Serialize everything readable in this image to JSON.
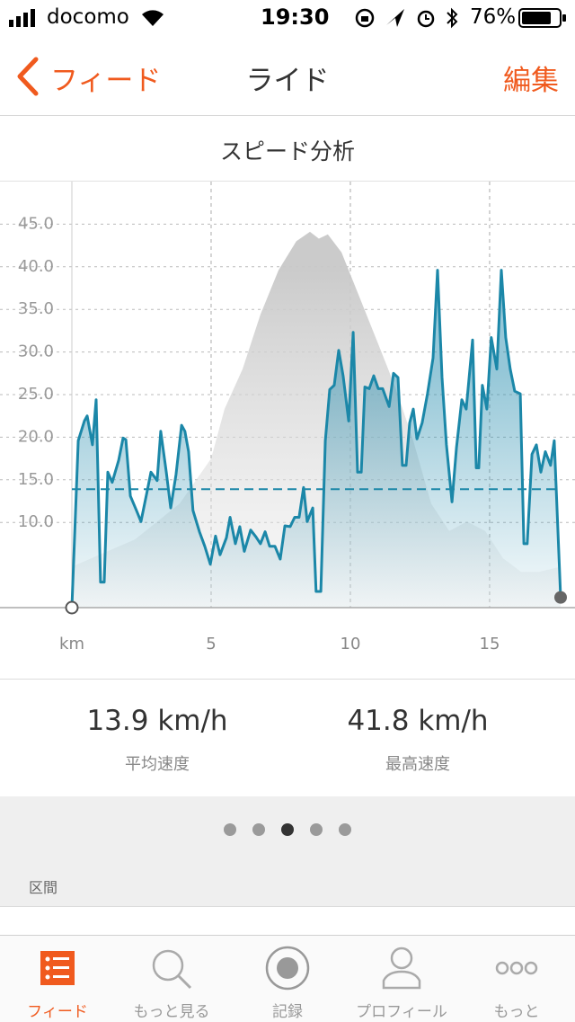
{
  "status_bar": {
    "carrier": "docomo",
    "time": "19:30",
    "battery": "76%"
  },
  "nav": {
    "back": "フィード",
    "title": "ライド",
    "action": "編集"
  },
  "section_title": "スピード分析",
  "chart_data": {
    "type": "area",
    "xlabel": "km",
    "xlim": [
      0,
      17.55
    ],
    "xticks": [
      5,
      10,
      15
    ],
    "ylim": [
      0,
      50
    ],
    "yticks": [
      {
        "value": 10,
        "label": "10.0"
      },
      {
        "value": 15,
        "label": "15.0"
      },
      {
        "value": 20,
        "label": "20.0"
      },
      {
        "value": 25,
        "label": "25.0"
      },
      {
        "value": 30,
        "label": "30.0"
      },
      {
        "value": 35,
        "label": "35.0"
      },
      {
        "value": 40,
        "label": "40.0"
      },
      {
        "value": 45,
        "label": "45.0"
      }
    ],
    "grid": true,
    "average": 13.9,
    "series": [
      {
        "color": "#c4c4c4",
        "x": [
          0,
          2.26,
          3.87,
          5,
          5.48,
          6.13,
          6.77,
          7.42,
          8.06,
          8.55,
          8.87,
          9.19,
          9.68,
          10.32,
          10.97,
          11.61,
          12.26,
          12.9,
          13.55,
          14.19,
          14.84,
          15.48,
          16.13,
          16.77,
          17.55
        ],
        "values": [
          4.8,
          8.0,
          12.2,
          17.5,
          23.3,
          28.0,
          34.4,
          39.6,
          43.0,
          44.1,
          43.3,
          43.8,
          41.7,
          36.5,
          31.2,
          25.9,
          19.6,
          12.2,
          9.0,
          10.1,
          9.0,
          5.8,
          4.2,
          4.2,
          4.8
        ]
      },
      {
        "color": "#1b87a8",
        "x": [
          0,
          0.23,
          0.45,
          0.55,
          0.74,
          0.87,
          1.03,
          1.16,
          1.29,
          1.45,
          1.68,
          1.84,
          1.94,
          2.1,
          2.32,
          2.48,
          2.68,
          2.84,
          3.06,
          3.19,
          3.39,
          3.55,
          3.74,
          3.94,
          4.06,
          4.19,
          4.35,
          4.58,
          4.77,
          4.97,
          5.16,
          5.32,
          5.55,
          5.68,
          5.87,
          6.03,
          6.19,
          6.42,
          6.61,
          6.77,
          6.94,
          7.1,
          7.29,
          7.48,
          7.65,
          7.84,
          8.0,
          8.16,
          8.32,
          8.45,
          8.65,
          8.77,
          8.94,
          9.1,
          9.26,
          9.42,
          9.58,
          9.74,
          9.94,
          10.1,
          10.26,
          10.39,
          10.52,
          10.68,
          10.84,
          11.0,
          11.16,
          11.39,
          11.55,
          11.71,
          11.87,
          12.0,
          12.13,
          12.26,
          12.39,
          12.58,
          12.77,
          12.97,
          13.13,
          13.29,
          13.45,
          13.65,
          13.81,
          14.0,
          14.16,
          14.39,
          14.52,
          14.61,
          14.74,
          14.9,
          15.06,
          15.26,
          15.42,
          15.58,
          15.74,
          15.9,
          16.1,
          16.23,
          16.35,
          16.52,
          16.68,
          16.84,
          17.0,
          17.19,
          17.32,
          17.55
        ],
        "values": [
          0,
          19.6,
          21.9,
          22.5,
          19.1,
          24.4,
          3,
          3,
          15.9,
          14.7,
          17.3,
          19.9,
          19.7,
          13.1,
          11.4,
          10.1,
          13.3,
          15.9,
          14.9,
          20.7,
          15.9,
          11.7,
          15.6,
          21.4,
          20.7,
          18.3,
          11.4,
          8.9,
          7.2,
          5.1,
          8.4,
          6.2,
          8.2,
          10.6,
          7.5,
          9.5,
          6.6,
          9.1,
          8.3,
          7.5,
          8.9,
          7.2,
          7.2,
          5.7,
          9.6,
          9.5,
          10.6,
          10.6,
          14.1,
          10.1,
          11.7,
          1.9,
          1.9,
          19.6,
          25.6,
          26.1,
          30.2,
          27.2,
          21.9,
          32.3,
          15.9,
          15.9,
          25.9,
          25.7,
          27.2,
          25.7,
          25.7,
          23.6,
          27.5,
          27.0,
          16.7,
          16.7,
          21.7,
          23.3,
          19.8,
          21.7,
          25.1,
          29.3,
          39.6,
          27.0,
          19.1,
          12.4,
          18.8,
          24.4,
          23.3,
          31.4,
          16.4,
          16.4,
          26.1,
          23.3,
          31.7,
          28.0,
          39.6,
          31.7,
          28.0,
          25.4,
          25.1,
          7.5,
          7.5,
          18.0,
          19.1,
          15.9,
          18.3,
          16.7,
          19.6,
          1.2
        ]
      }
    ]
  },
  "stats": [
    {
      "value": "13.9 km/h",
      "label": "平均速度"
    },
    {
      "value": "41.8 km/h",
      "label": "最高速度"
    }
  ],
  "section_header": "区間",
  "tabs": [
    "フィード",
    "もっと見る",
    "記録",
    "プロフィール",
    "もっと"
  ]
}
